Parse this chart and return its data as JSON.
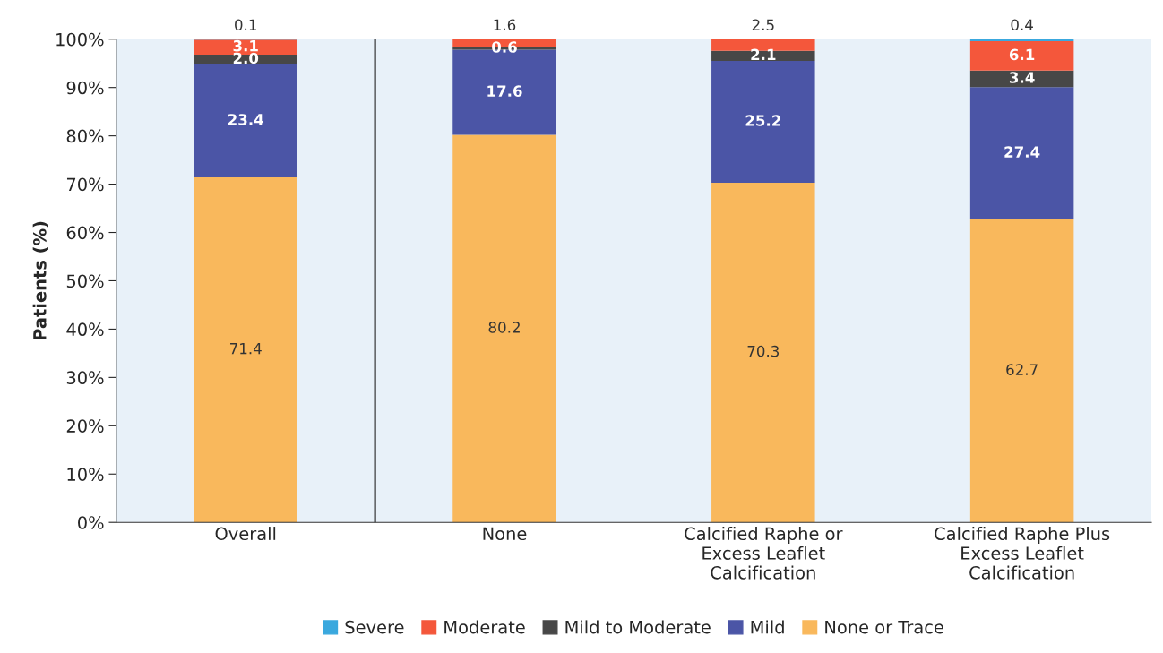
{
  "chart_data": {
    "type": "bar",
    "stacked": true,
    "ylabel": "Patients (%)",
    "categories": [
      "Overall",
      "None",
      "Calcified Raphe or\nExcess Leaflet\nCalcification",
      "Calcified Raphe Plus\nExcess Leaflet\nCalcification"
    ],
    "series": [
      {
        "name": "None or Trace",
        "color": "#f9b85c",
        "values": [
          71.4,
          80.2,
          70.3,
          62.7
        ],
        "value_labels": [
          "71.4",
          "80.2",
          "70.3",
          "62.7"
        ]
      },
      {
        "name": "Mild",
        "color": "#4b55a6",
        "values": [
          23.4,
          17.6,
          25.2,
          27.4
        ],
        "value_labels": [
          "23.4",
          "17.6",
          "25.2",
          "27.4"
        ]
      },
      {
        "name": "Mild to Moderate",
        "color": "#474747",
        "values": [
          2.0,
          0.6,
          2.1,
          3.4
        ],
        "value_labels": [
          "2.0",
          "0.6",
          "2.1",
          "3.4"
        ]
      },
      {
        "name": "Moderate",
        "color": "#f4573b",
        "values": [
          3.1,
          1.6,
          2.5,
          6.1
        ],
        "value_labels": [
          "3.1",
          "1.6",
          "2.5",
          "6.1"
        ]
      },
      {
        "name": "Severe",
        "color": "#3aa8de",
        "values": [
          0.1,
          null,
          null,
          0.4
        ],
        "value_labels": [
          "0.1",
          null,
          null,
          "0.4"
        ]
      }
    ],
    "ylim": [
      0,
      100
    ],
    "yticks": [
      {
        "value": 0,
        "label": "0%"
      },
      {
        "value": 10,
        "label": "10%"
      },
      {
        "value": 20,
        "label": "20%"
      },
      {
        "value": 30,
        "label": "30%"
      },
      {
        "value": 40,
        "label": "40%"
      },
      {
        "value": 50,
        "label": "50%"
      },
      {
        "value": 60,
        "label": "60%"
      },
      {
        "value": 70,
        "label": "70%"
      },
      {
        "value": 80,
        "label": "80%"
      },
      {
        "value": 90,
        "label": "90%"
      },
      {
        "value": 100,
        "label": "100%"
      }
    ],
    "grid": false,
    "legend": "bottom"
  }
}
